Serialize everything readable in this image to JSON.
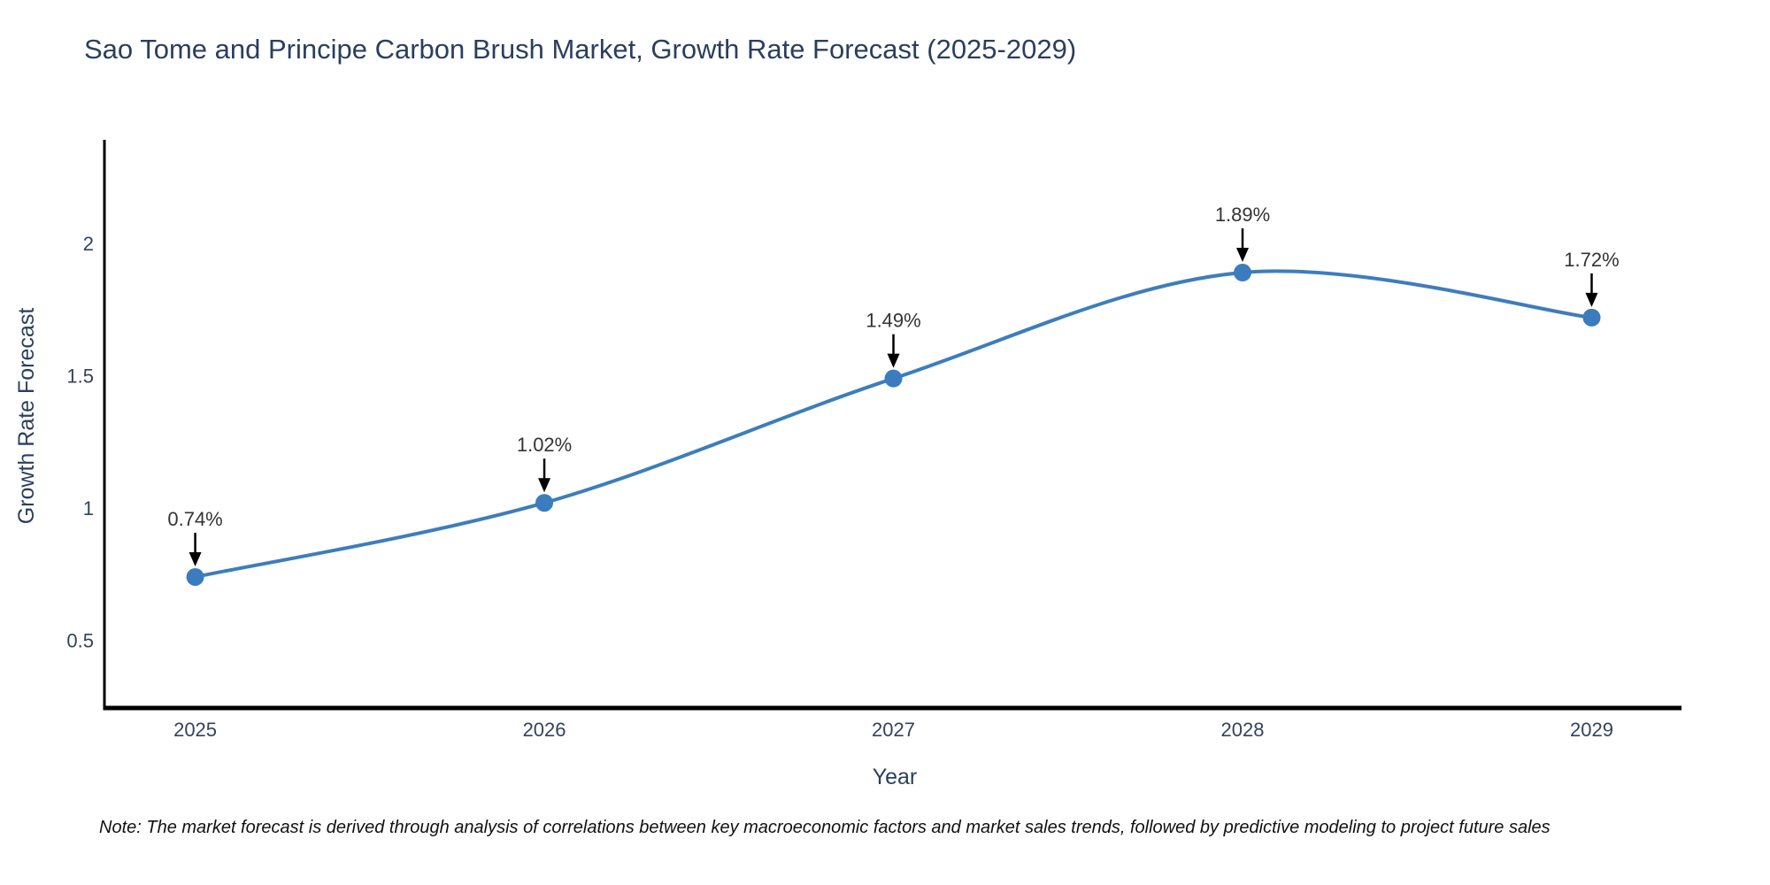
{
  "chart_data": {
    "type": "line",
    "title": "Sao Tome and Principe Carbon Brush Market, Growth Rate Forecast (2025-2029)",
    "xlabel": "Year",
    "ylabel": "Growth Rate Forecast",
    "categories": [
      2025,
      2026,
      2027,
      2028,
      2029
    ],
    "values": [
      0.74,
      1.02,
      1.49,
      1.89,
      1.72
    ],
    "point_labels": [
      "0.74%",
      "1.02%",
      "1.49%",
      "1.89%",
      "1.72%"
    ],
    "xtick_labels": [
      "2025",
      "2026",
      "2027",
      "2028",
      "2029"
    ],
    "ytick_values": [
      0.5,
      1.0,
      1.5,
      2.0
    ],
    "ytick_labels": [
      "0.5",
      "1",
      "1.5",
      "2"
    ],
    "xlim": [
      2024.74,
      2029.27
    ],
    "ylim": [
      0.245,
      2.385
    ],
    "grid": false,
    "legend": false,
    "curve": "spline",
    "marker": "circle",
    "annotations_have_arrows": true
  },
  "footnote": "Note: The market forecast is derived through analysis of correlations between key macroeconomic factors and market sales trends, followed by predictive modeling to project future sales",
  "colors": {
    "background": "#ffffff",
    "line": "#3d7dbc",
    "marker": "#3a7cbe",
    "axis": "#000000",
    "title": "#2a3f5f",
    "tick_label": "#33435c",
    "annotation_text": "#333333",
    "annotation_arrow": "#000000",
    "footnote_text": "#111111"
  }
}
